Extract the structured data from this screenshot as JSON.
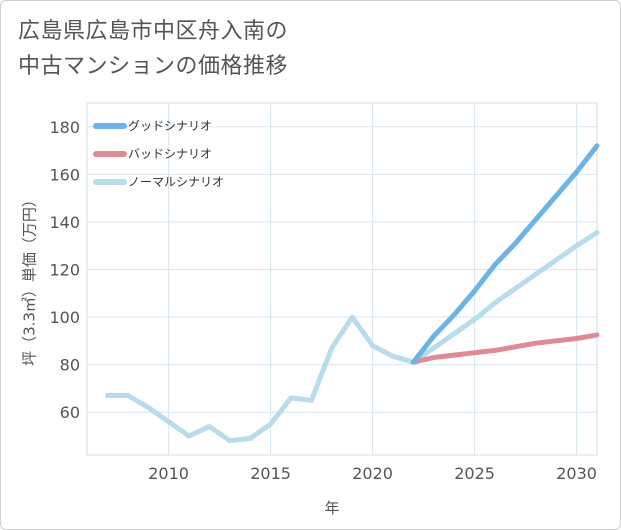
{
  "title_lines": [
    "広島県広島市中区舟入南の",
    "中古マンションの価格推移"
  ],
  "chart_data": {
    "type": "line",
    "xlabel": "年",
    "ylabel": "坪（3.3㎡）単価（万円）",
    "xlim": [
      2006,
      2031
    ],
    "ylim": [
      42,
      190
    ],
    "x_ticks": [
      2010,
      2015,
      2020,
      2025,
      2030
    ],
    "y_ticks": [
      60,
      80,
      100,
      120,
      140,
      160,
      180
    ],
    "grid": true,
    "legend_position": "top-left",
    "series": [
      {
        "name": "グッドシナリオ",
        "color": "#6cb4e8",
        "points": [
          [
            2022,
            81
          ],
          [
            2023,
            92
          ],
          [
            2024,
            101
          ],
          [
            2025,
            111
          ],
          [
            2026,
            122
          ],
          [
            2027,
            131
          ],
          [
            2028,
            141
          ],
          [
            2029,
            151
          ],
          [
            2030,
            161
          ],
          [
            2031,
            172
          ]
        ]
      },
      {
        "name": "バッドシナリオ",
        "color": "#df8a95",
        "points": [
          [
            2022,
            81
          ],
          [
            2023,
            83
          ],
          [
            2024,
            84
          ],
          [
            2025,
            85
          ],
          [
            2026,
            86
          ],
          [
            2027,
            87.5
          ],
          [
            2028,
            89
          ],
          [
            2029,
            90
          ],
          [
            2030,
            91
          ],
          [
            2031,
            92.5
          ]
        ]
      },
      {
        "name": "ノーマルシナリオ",
        "color": "#b8dcec",
        "points": [
          [
            2007,
            67
          ],
          [
            2008,
            67
          ],
          [
            2009,
            62
          ],
          [
            2010,
            56
          ],
          [
            2011,
            50
          ],
          [
            2012,
            54
          ],
          [
            2013,
            48
          ],
          [
            2014,
            49
          ],
          [
            2015,
            55
          ],
          [
            2016,
            66
          ],
          [
            2017,
            65
          ],
          [
            2018,
            87
          ],
          [
            2019,
            100
          ],
          [
            2020,
            88
          ],
          [
            2021,
            83.5
          ],
          [
            2022,
            81
          ],
          [
            2023,
            87
          ],
          [
            2024,
            93
          ],
          [
            2025,
            99
          ],
          [
            2026,
            106
          ],
          [
            2027,
            112
          ],
          [
            2028,
            118
          ],
          [
            2029,
            124
          ],
          [
            2030,
            130
          ],
          [
            2031,
            135.5
          ]
        ]
      }
    ]
  }
}
